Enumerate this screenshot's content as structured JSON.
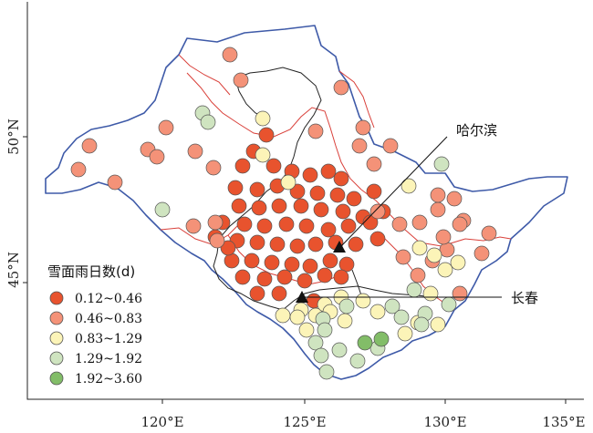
{
  "axes": {
    "x_ticks": [
      "120°E",
      "125°E",
      "130°E",
      "135°E"
    ],
    "y_ticks": [
      "50°N",
      "45°N"
    ]
  },
  "cities": {
    "harbin": "哈尔滨",
    "changchun": "长春"
  },
  "legend": {
    "title": "雪面雨日数(d)",
    "classes": [
      {
        "label": "0.12~0.46",
        "color": "#e8532e"
      },
      {
        "label": "0.46~0.83",
        "color": "#f49278"
      },
      {
        "label": "0.83~1.29",
        "color": "#fcf4b8"
      },
      {
        "label": "1.29~1.92",
        "color": "#cfe4c0"
      },
      {
        "label": "1.92~3.60",
        "color": "#82bd68"
      }
    ]
  },
  "colors": {
    "national_border": "#3e5aa8",
    "province_border": "#d9403a",
    "inner_border": "#222222",
    "station_outline": "#555555"
  }
}
